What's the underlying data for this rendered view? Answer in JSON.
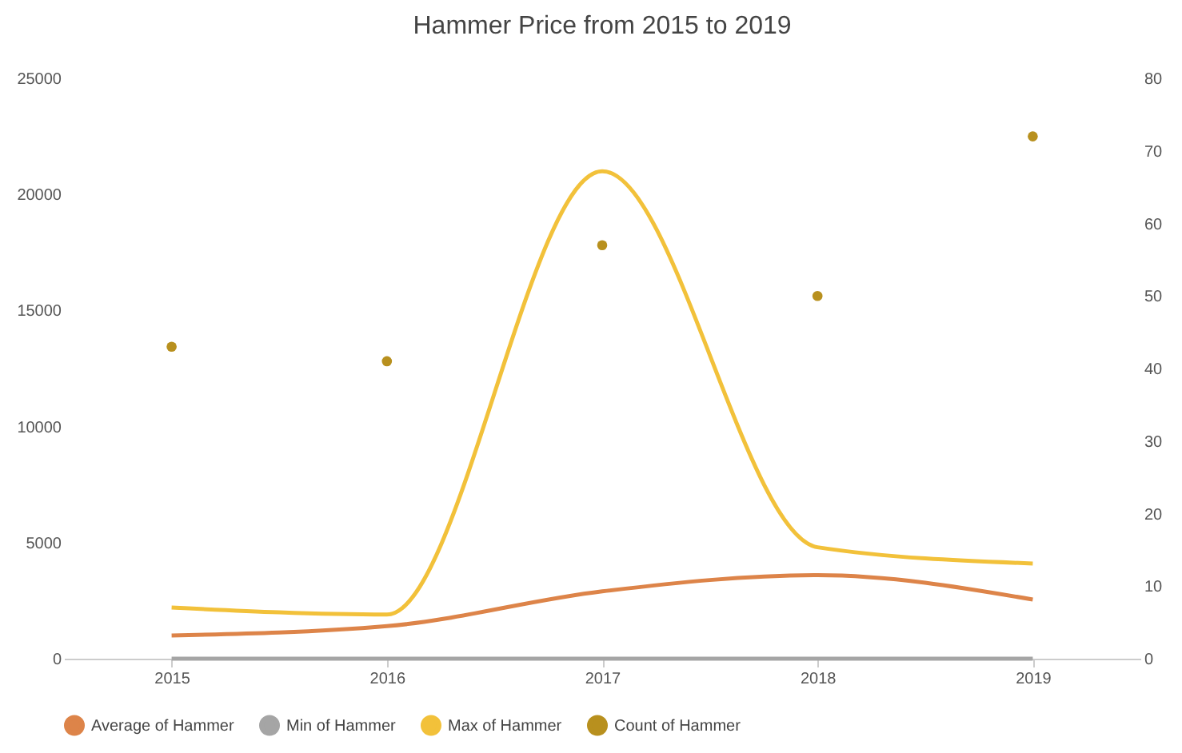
{
  "chart_data": {
    "type": "line",
    "title": "Hammer Price from 2015 to 2019",
    "categories": [
      "2015",
      "2016",
      "2017",
      "2018",
      "2019"
    ],
    "ylim": [
      0,
      25000
    ],
    "yticks": [
      0,
      5000,
      10000,
      15000,
      20000,
      25000
    ],
    "y2lim": [
      0,
      80
    ],
    "y2ticks": [
      0,
      10,
      20,
      30,
      40,
      50,
      60,
      70,
      80
    ],
    "legend": "bottom",
    "series": [
      {
        "name": "Average of Hammer",
        "color": "#dd8449",
        "values": [
          1000,
          1400,
          2900,
          3600,
          2550
        ]
      },
      {
        "name": "Min of Hammer",
        "color": "#a5a5a5",
        "values": [
          0,
          0,
          0,
          0,
          0
        ]
      },
      {
        "name": "Max of Hammer",
        "color": "#f2c13a",
        "values": [
          2200,
          1900,
          21000,
          4800,
          4100
        ]
      },
      {
        "name": "Count of Hammer",
        "color": "#b8901e",
        "type": "scatter",
        "axis": "y2",
        "values": [
          43,
          41,
          57,
          50,
          72
        ]
      }
    ]
  }
}
